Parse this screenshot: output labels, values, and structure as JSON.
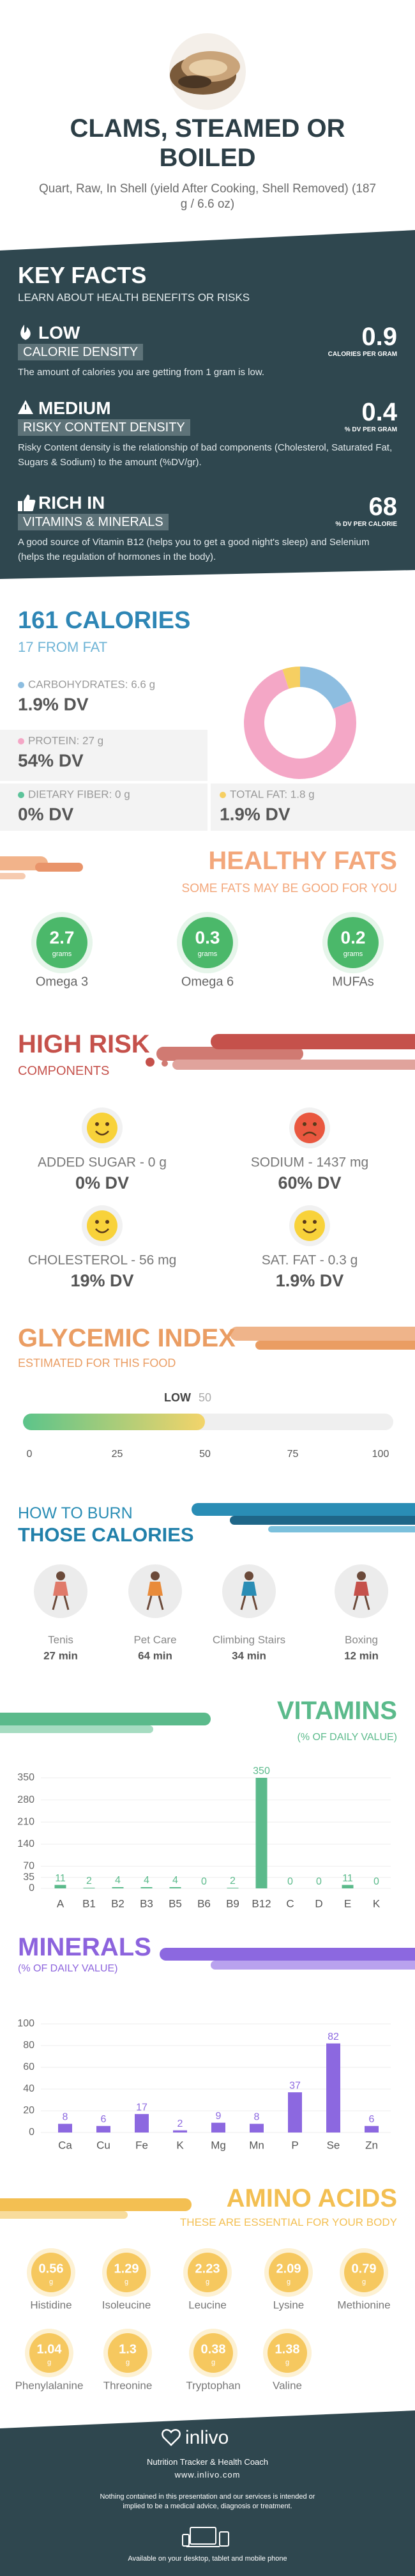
{
  "header": {
    "title": "CLAMS, STEAMED OR BOILED",
    "subtitle": "Quart, Raw, In Shell (yield After Cooking, Shell Removed) (187 g / 6.6 oz)"
  },
  "key_facts": {
    "title": "KEY FACTS",
    "subtitle": "LEARN ABOUT HEALTH BENEFITS OR RISKS",
    "items": [
      {
        "level": "LOW",
        "label": "CALORIE DENSITY",
        "value": 0.9,
        "unit": "CALORIES PER GRAM",
        "description": "The amount of calories you are getting from 1 gram is low."
      },
      {
        "level": "MEDIUM",
        "label": "RISKY CONTENT DENSITY",
        "value": 0.4,
        "unit": "% DV PER GRAM",
        "description": "Risky Content density is the relationship of bad components (Cholesterol, Saturated Fat, Sugars & Sodium) to the amount (%DV/gr)."
      },
      {
        "level": "RICH  IN",
        "label": "VITAMINS & MINERALS",
        "value": 68,
        "unit": "% DV PER CALORIE",
        "description": "A good source of Vitamin B12 (helps you to get a good night's sleep) and Selenium (helps the regulation of hormones in the body)."
      }
    ]
  },
  "healthy_fats": {
    "title": "HEALTHY FATS",
    "subtitle": "SOME FATS MAY BE GOOD FOR YOU",
    "unit": "grams",
    "items": [
      {
        "name": "Omega 3",
        "value": 2.7
      },
      {
        "name": "Omega 6",
        "value": 0.3
      },
      {
        "name": "MUFAs",
        "value": 0.2
      }
    ]
  },
  "high_risk": {
    "title": "HIGH RISK",
    "subtitle": "COMPONENTS",
    "items": [
      {
        "label": "ADDED SUGAR - 0 g",
        "dv": "0% DV",
        "mood": "happy"
      },
      {
        "label": "SODIUM - 1437 mg",
        "dv": "60% DV",
        "mood": "sad"
      },
      {
        "label": "CHOLESTEROL - 56 mg",
        "dv": "19% DV",
        "mood": "happy"
      },
      {
        "label": "SAT. FAT - 0.3 g",
        "dv": "1.9% DV",
        "mood": "happy"
      }
    ]
  },
  "burn": {
    "title_top": "HOW TO BURN",
    "title": "THOSE CALORIES",
    "items": [
      {
        "name": "Tenis",
        "time": "27 min"
      },
      {
        "name": "Pet Care",
        "time": "64 min"
      },
      {
        "name": "Climbing Stairs",
        "time": "34 min"
      },
      {
        "name": "Boxing",
        "time": "12 min"
      }
    ]
  },
  "amino_acids": {
    "title": "AMINO ACIDS",
    "subtitle": "THESE ARE ESSENTIAL FOR YOUR BODY",
    "unit": "g",
    "items": [
      {
        "name": "Histidine",
        "value": 0.56
      },
      {
        "name": "Isoleucine",
        "value": 1.29
      },
      {
        "name": "Leucine",
        "value": 2.23
      },
      {
        "name": "Lysine",
        "value": 2.09
      },
      {
        "name": "Methionine",
        "value": 0.79
      },
      {
        "name": "Phenylalanine",
        "value": 1.04
      },
      {
        "name": "Threonine",
        "value": 1.3
      },
      {
        "name": "Tryptophan",
        "value": 0.38
      },
      {
        "name": "Valine",
        "value": 1.38
      }
    ]
  },
  "footer": {
    "brand": "inlivo",
    "tagline": "Nutrition Tracker & Health Coach",
    "url": "www.inlivo.com",
    "disclaimer": "Nothing contained in this presentation and our services is intended or implied to be a medical advice, diagnosis or treatment.",
    "availability": "Available on your desktop, tablet and mobile phone"
  },
  "chart_data": [
    {
      "type": "pie",
      "donut": true,
      "title": "161 CALORIES",
      "subtitle": "17 FROM FAT",
      "series": [
        {
          "name": "CARBOHYDRATES: 6.6 g",
          "value": 6.6,
          "dv": "1.9% DV",
          "color": "#8dbde0"
        },
        {
          "name": "PROTEIN: 27 g",
          "value": 27,
          "dv": "54% DV",
          "color": "#f4a7c6"
        },
        {
          "name": "DIETARY FIBER: 0 g",
          "value": 0,
          "dv": "0% DV",
          "color": "#5cc39a"
        },
        {
          "name": "TOTAL FAT: 1.8 g",
          "value": 1.8,
          "dv": "1.9% DV",
          "color": "#f6cf62"
        }
      ]
    },
    {
      "type": "gauge",
      "title": "GLYCEMIC INDEX",
      "subtitle": "ESTIMATED FOR THIS FOOD",
      "value": 50,
      "value_label": "LOW",
      "xlim": [
        0,
        100
      ],
      "xticks": [
        0,
        25,
        50,
        75,
        100
      ]
    },
    {
      "type": "bar",
      "title": "VITAMINS",
      "subtitle": "(% OF DAILY VALUE)",
      "categories": [
        "A",
        "B1",
        "B2",
        "B3",
        "B5",
        "B6",
        "B9",
        "B12",
        "C",
        "D",
        "E",
        "K"
      ],
      "values": [
        11,
        2,
        4,
        4,
        4,
        0,
        2,
        350,
        0,
        0,
        11,
        0
      ],
      "color": "#5bba8b",
      "ylim": [
        0,
        350
      ],
      "yticks": [
        0,
        35,
        70,
        140,
        210,
        280,
        350
      ],
      "grid": true
    },
    {
      "type": "bar",
      "title": "MINERALS",
      "subtitle": "(% OF DAILY VALUE)",
      "categories": [
        "Ca",
        "Cu",
        "Fe",
        "K",
        "Mg",
        "Mn",
        "P",
        "Se",
        "Zn"
      ],
      "values": [
        8,
        6,
        17,
        2,
        9,
        8,
        37,
        82,
        6
      ],
      "color": "#8c68e0",
      "ylim": [
        0,
        100
      ],
      "yticks": [
        0,
        20,
        40,
        60,
        80,
        100
      ],
      "grid": true
    }
  ]
}
